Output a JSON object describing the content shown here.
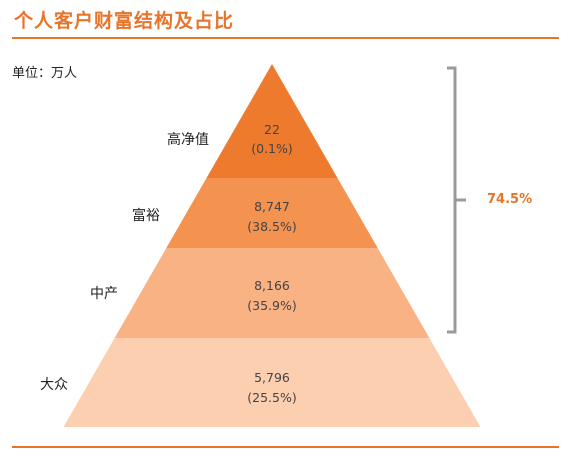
{
  "title": "个人客户财富结构及占比",
  "unit_label": "单位：万人",
  "colors": {
    "accent": "#e8742a",
    "tier1": "#ee7a2d",
    "tier2": "#f4924f",
    "tier3": "#f9b284",
    "tier4": "#fccfb0",
    "bracket": "#9a9a9a"
  },
  "chart_data": {
    "type": "pyramid",
    "tiers": [
      {
        "name": "高净值",
        "value": "22",
        "share": "(0.1%)"
      },
      {
        "name": "富裕",
        "value": "8,747",
        "share": "(38.5%)"
      },
      {
        "name": "中产",
        "value": "8,166",
        "share": "(35.9%)"
      },
      {
        "name": "大众",
        "value": "5,796",
        "share": "(25.5%)"
      }
    ],
    "annotation": "74.5%"
  }
}
